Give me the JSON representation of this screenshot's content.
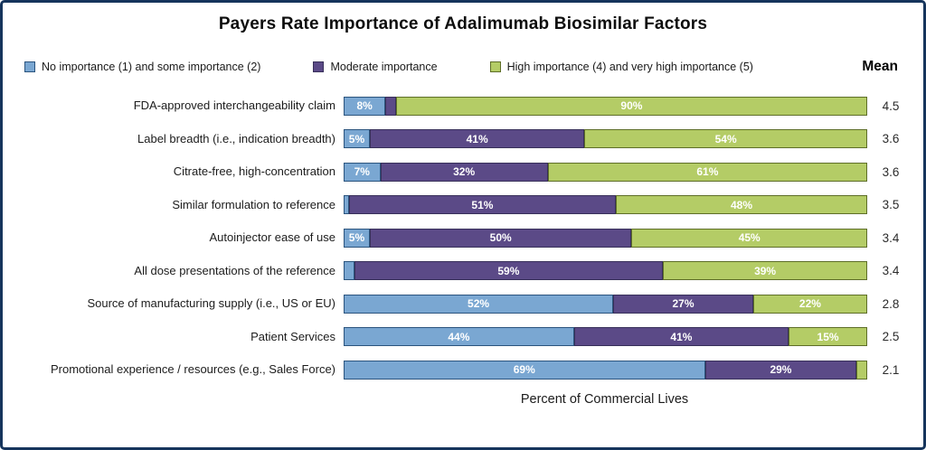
{
  "title": "Payers Rate Importance of Adalimumab Biosimilar Factors",
  "legend": {
    "items": [
      {
        "label": "No importance (1) and some importance (2)",
        "color": "#7aa7d2",
        "border": "#2b547e"
      },
      {
        "label": "Moderate importance",
        "color": "#5b4a87",
        "border": "#38305a"
      },
      {
        "label": "High importance (4) and very high importance (5)",
        "color": "#b4cc66",
        "border": "#5e6e28"
      }
    ],
    "mean_label": "Mean"
  },
  "chart_data": {
    "type": "bar",
    "orientation": "horizontal",
    "stacked": true,
    "title": "Payers Rate Importance of Adalimumab Biosimilar Factors",
    "xlabel": "Percent of Commercial Lives",
    "xlim": [
      0,
      100
    ],
    "label_threshold": 5,
    "categories": [
      "FDA-approved interchangeability claim",
      "Label breadth (i.e., indication breadth)",
      "Citrate-free, high-concentration",
      "Similar formulation to reference",
      "Autoinjector ease of use",
      "All dose presentations of the reference",
      "Source of manufacturing supply (i.e., US or EU)",
      "Patient Services",
      "Promotional experience / resources (e.g., Sales Force)"
    ],
    "series": [
      {
        "name": "No importance (1) and some importance (2)",
        "color": "#7aa7d2",
        "border": "#2b547e",
        "values": [
          8,
          5,
          7,
          1,
          5,
          2,
          52,
          44,
          69
        ]
      },
      {
        "name": "Moderate importance",
        "color": "#5b4a87",
        "border": "#38305a",
        "values": [
          2,
          41,
          32,
          51,
          50,
          59,
          27,
          41,
          29
        ]
      },
      {
        "name": "High importance (4) and very high importance (5)",
        "color": "#b4cc66",
        "border": "#5e6e28",
        "values": [
          90,
          54,
          61,
          48,
          45,
          39,
          22,
          15,
          2
        ]
      }
    ],
    "means": [
      "4.5",
      "3.6",
      "3.6",
      "3.5",
      "3.4",
      "3.4",
      "2.8",
      "2.5",
      "2.1"
    ]
  }
}
